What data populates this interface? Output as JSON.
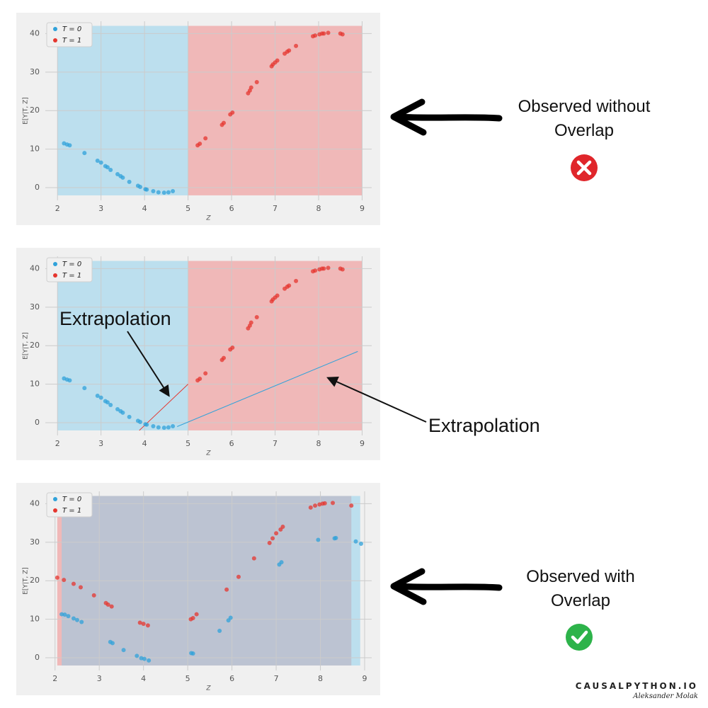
{
  "chart_data": [
    {
      "type": "scatter",
      "xlabel": "Z",
      "ylabel": "E[Y|T, Z]",
      "xlim": [
        1.72,
        9.22
      ],
      "ylim": [
        -3.3,
        43.2
      ],
      "xticks": [
        2,
        3,
        4,
        5,
        6,
        7,
        8,
        9
      ],
      "yticks": [
        0,
        10,
        20,
        30,
        40
      ],
      "grid": true,
      "legend": "upper left",
      "regions": [
        {
          "color": "#87ceeb",
          "xlim": [
            2,
            5
          ],
          "ylim": [
            -2,
            42
          ]
        },
        {
          "color": "#f08080",
          "xlim": [
            5,
            9
          ],
          "ylim": [
            -2,
            42
          ]
        }
      ],
      "lines": [],
      "series": [
        {
          "name": "T = 0",
          "color": "#30a2da",
          "x": [
            2.15,
            2.22,
            2.28,
            2.62,
            2.92,
            3.0,
            3.1,
            3.15,
            3.22,
            3.38,
            3.45,
            3.5,
            3.65,
            3.85,
            3.9,
            4.02,
            4.05,
            4.2,
            4.32,
            4.45,
            4.55,
            4.65
          ],
          "values": [
            11.5,
            11.2,
            11,
            9,
            7,
            6.5,
            5.6,
            5.3,
            4.6,
            3.5,
            3,
            2.6,
            1.5,
            0.5,
            0.2,
            -0.4,
            -0.5,
            -0.9,
            -1.2,
            -1.3,
            -1.2,
            -0.9
          ]
        },
        {
          "name": "T = 1",
          "color": "#e5362f",
          "x": [
            5.22,
            5.27,
            5.4,
            5.78,
            5.82,
            5.97,
            6.02,
            6.38,
            6.42,
            6.45,
            6.58,
            6.92,
            6.95,
            7.0,
            7.05,
            7.22,
            7.28,
            7.32,
            7.48,
            7.87,
            7.92,
            8.02,
            8.08,
            8.12,
            8.22,
            8.5,
            8.55
          ],
          "values": [
            11,
            11.4,
            12.8,
            16.3,
            16.8,
            19,
            19.5,
            24.5,
            25.2,
            26,
            27.4,
            31.5,
            32,
            32.5,
            33,
            34.8,
            35.3,
            35.6,
            36.8,
            39.3,
            39.5,
            39.8,
            40,
            40,
            40.2,
            40,
            39.8
          ]
        }
      ],
      "annotations": [
        "Observed without Overlap"
      ]
    },
    {
      "type": "scatter",
      "xlabel": "Z",
      "ylabel": "E[Y|T, Z]",
      "xlim": [
        1.72,
        9.22
      ],
      "ylim": [
        -3.3,
        43.2
      ],
      "xticks": [
        2,
        3,
        4,
        5,
        6,
        7,
        8,
        9
      ],
      "yticks": [
        0,
        10,
        20,
        30,
        40
      ],
      "grid": true,
      "legend": "upper left",
      "regions": [
        {
          "color": "#87ceeb",
          "xlim": [
            2,
            5
          ],
          "ylim": [
            -2,
            42
          ]
        },
        {
          "color": "#f08080",
          "xlim": [
            5,
            9
          ],
          "ylim": [
            -2,
            42
          ]
        }
      ],
      "lines": [
        {
          "color": "#e5362f",
          "x": [
            3.88,
            5.0
          ],
          "values": [
            -2,
            10
          ]
        },
        {
          "color": "#30a2da",
          "x": [
            4.75,
            8.9
          ],
          "values": [
            -1,
            18.5
          ]
        }
      ],
      "series": [
        {
          "name": "T = 0",
          "color": "#30a2da",
          "x": [
            2.15,
            2.22,
            2.28,
            2.62,
            2.92,
            3.0,
            3.1,
            3.15,
            3.22,
            3.38,
            3.45,
            3.5,
            3.65,
            3.85,
            3.9,
            4.02,
            4.05,
            4.2,
            4.32,
            4.45,
            4.55,
            4.65
          ],
          "values": [
            11.5,
            11.2,
            11,
            9,
            7,
            6.5,
            5.6,
            5.3,
            4.6,
            3.5,
            3,
            2.6,
            1.5,
            0.5,
            0.2,
            -0.4,
            -0.5,
            -0.9,
            -1.2,
            -1.3,
            -1.2,
            -0.9
          ]
        },
        {
          "name": "T = 1",
          "color": "#e5362f",
          "x": [
            5.22,
            5.27,
            5.4,
            5.78,
            5.82,
            5.97,
            6.02,
            6.38,
            6.42,
            6.45,
            6.58,
            6.92,
            6.95,
            7.0,
            7.05,
            7.22,
            7.28,
            7.32,
            7.48,
            7.87,
            7.92,
            8.02,
            8.08,
            8.12,
            8.22,
            8.5,
            8.55
          ],
          "values": [
            11,
            11.4,
            12.8,
            16.3,
            16.8,
            19,
            19.5,
            24.5,
            25.2,
            26,
            27.4,
            31.5,
            32,
            32.5,
            33,
            34.8,
            35.3,
            35.6,
            36.8,
            39.3,
            39.5,
            39.8,
            40,
            40,
            40.2,
            40,
            39.8
          ]
        }
      ],
      "annotations": [
        "Extrapolation",
        "Extrapolation"
      ]
    },
    {
      "type": "scatter",
      "xlabel": "Z",
      "ylabel": "E[Y|T, Z]",
      "xlim": [
        1.78,
        9.16
      ],
      "ylim": [
        -3.3,
        43.2
      ],
      "xticks": [
        2,
        3,
        4,
        5,
        6,
        7,
        8,
        9
      ],
      "yticks": [
        0,
        10,
        20,
        30,
        40
      ],
      "grid": true,
      "legend": "upper left",
      "regions": [
        {
          "color": "#f08080",
          "xlim": [
            2.05,
            8.7
          ],
          "ylim": [
            -2,
            42
          ]
        },
        {
          "color": "#87ceeb",
          "xlim": [
            2.15,
            8.9
          ],
          "ylim": [
            -2,
            42
          ]
        }
      ],
      "lines": [],
      "series": [
        {
          "name": "T = 0",
          "color": "#30a2da",
          "x": [
            2.15,
            2.22,
            2.3,
            2.42,
            2.5,
            2.6,
            3.25,
            3.3,
            3.55,
            3.85,
            3.95,
            4.02,
            4.12,
            5.08,
            5.12,
            5.72,
            5.92,
            5.97,
            7.07,
            7.12,
            7.95,
            8.32,
            8.35,
            8.8,
            8.92
          ],
          "values": [
            11.3,
            11.2,
            10.8,
            10.2,
            9.8,
            9.3,
            4.1,
            3.8,
            2,
            0.5,
            -0.1,
            -0.3,
            -0.7,
            1.2,
            1.1,
            7,
            9.7,
            10.4,
            24.2,
            24.8,
            30.6,
            31,
            31.1,
            30.2,
            29.6
          ]
        },
        {
          "name": "T = 1",
          "color": "#e5362f",
          "x": [
            2.05,
            2.2,
            2.42,
            2.58,
            2.88,
            3.15,
            3.2,
            3.28,
            3.92,
            4.0,
            4.1,
            5.07,
            5.12,
            5.2,
            5.88,
            6.15,
            6.5,
            6.85,
            6.92,
            7.0,
            7.1,
            7.15,
            7.78,
            7.88,
            7.98,
            8.05,
            8.1,
            8.28,
            8.7
          ],
          "values": [
            20.8,
            20.2,
            19.2,
            18.3,
            16.2,
            14.2,
            13.8,
            13.3,
            9.1,
            8.8,
            8.4,
            10,
            10.3,
            11.3,
            17.7,
            21,
            25.8,
            29.8,
            31,
            32.3,
            33.3,
            34,
            39,
            39.5,
            39.8,
            40,
            40.1,
            40.2,
            39.5
          ]
        }
      ],
      "annotations": [
        "Observed with Overlap"
      ]
    }
  ],
  "footer": {
    "brand": "CAUSALPYTHON.IO",
    "signature": "Aleksander Molak"
  }
}
